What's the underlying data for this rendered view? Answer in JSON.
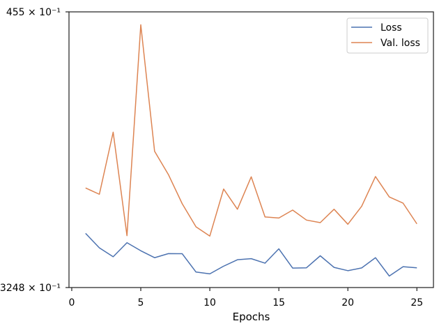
{
  "chart_data": {
    "type": "line",
    "title": "",
    "xlabel": "Epochs",
    "ylabel": "",
    "xlim": [
      -0.2,
      26.2
    ],
    "ylim": [
      0.3248,
      0.3455
    ],
    "x_ticks": [
      0,
      5,
      10,
      15,
      20,
      25
    ],
    "y_tick_labels": [
      "3248 × 10⁻¹",
      "455 × 10⁻¹"
    ],
    "y_log_scale": true,
    "grid": false,
    "legend_position": "top-right",
    "x": [
      1,
      2,
      3,
      4,
      5,
      6,
      7,
      8,
      9,
      10,
      11,
      12,
      13,
      14,
      15,
      16,
      17,
      18,
      19,
      20,
      21,
      22,
      23,
      24,
      25
    ],
    "series": [
      {
        "name": "Loss",
        "color": "#4c72b0",
        "values": [
          0.32877,
          0.3277,
          0.32705,
          0.32808,
          0.32749,
          0.32698,
          0.32728,
          0.32727,
          0.32593,
          0.3258,
          0.32636,
          0.32683,
          0.32691,
          0.32658,
          0.32763,
          0.32622,
          0.32624,
          0.32712,
          0.32627,
          0.32603,
          0.32623,
          0.32698,
          0.32564,
          0.32632,
          0.32624
        ]
      },
      {
        "name": "Val. loss",
        "color": "#dd8452",
        "values": [
          0.33213,
          0.33166,
          0.33631,
          0.3286,
          0.3445,
          0.33487,
          0.33313,
          0.33096,
          0.32925,
          0.32857,
          0.33205,
          0.33055,
          0.33296,
          0.32998,
          0.3299,
          0.33049,
          0.32975,
          0.32956,
          0.33055,
          0.32944,
          0.33077,
          0.33298,
          0.33146,
          0.331,
          0.32947
        ]
      }
    ]
  }
}
